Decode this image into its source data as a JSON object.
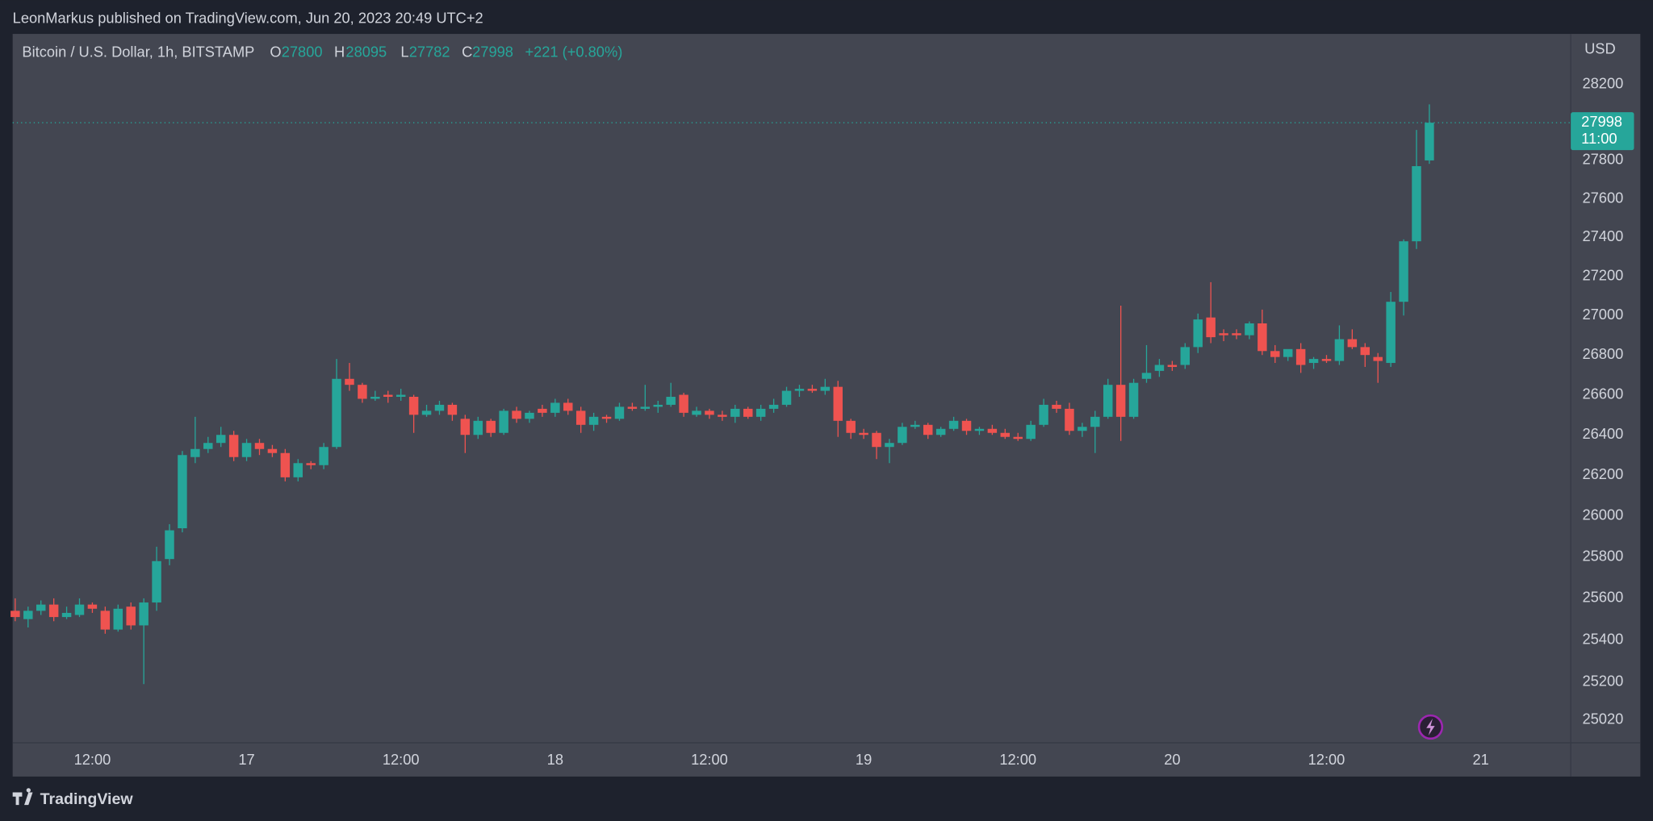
{
  "header": {
    "published": "LeonMarkus published on TradingView.com, Jun 20, 2023 20:49 UTC+2"
  },
  "footer": {
    "brand": "TradingView"
  },
  "chart_data": {
    "type": "candlestick",
    "title": "Bitcoin / U.S. Dollar, 1h, BITSTAMP",
    "legend_labels": {
      "open": "O",
      "high": "H",
      "low": "L",
      "close": "C"
    },
    "change": "+221 (+0.80%)",
    "currency": "USD",
    "countdown": "11:00",
    "up_color": "#26a69a",
    "down_color": "#ef5350",
    "log_scale": true,
    "grid": false,
    "xlim": [
      -0.2,
      121
    ],
    "ylim": [
      24913,
      28470
    ],
    "xticks": [
      {
        "value": 6,
        "label": "12:00"
      },
      {
        "value": 18,
        "label": "17"
      },
      {
        "value": 30,
        "label": "12:00"
      },
      {
        "value": 42,
        "label": "18"
      },
      {
        "value": 54,
        "label": "12:00"
      },
      {
        "value": 66,
        "label": "19"
      },
      {
        "value": 78,
        "label": "12:00"
      },
      {
        "value": 90,
        "label": "20"
      },
      {
        "value": 102,
        "label": "12:00"
      },
      {
        "value": 114,
        "label": "21"
      }
    ],
    "yticks": [
      28200,
      27800,
      27600,
      27400,
      27200,
      27000,
      26800,
      26600,
      26400,
      26200,
      26000,
      25800,
      25600,
      25400,
      25200,
      25020
    ],
    "open": [
      25540,
      25500,
      25540,
      25570,
      25510,
      25520,
      25570,
      25540,
      25450,
      25560,
      25470,
      25580,
      25790,
      25940,
      26290,
      26330,
      26360,
      26400,
      26290,
      26360,
      26330,
      26310,
      26190,
      26260,
      26250,
      26340,
      26680,
      26650,
      26580,
      26600,
      26590,
      26590,
      26500,
      26520,
      26550,
      26480,
      26400,
      26470,
      26410,
      26520,
      26480,
      26530,
      26510,
      26560,
      26520,
      26450,
      26490,
      26480,
      26540,
      26530,
      26540,
      26550,
      26600,
      26500,
      26520,
      26500,
      26490,
      26530,
      26490,
      26530,
      26550,
      26620,
      26630,
      26620,
      26640,
      26470,
      26410,
      26410,
      26340,
      26360,
      26440,
      26450,
      26400,
      26430,
      26470,
      26420,
      26430,
      26410,
      26390,
      26380,
      26450,
      26550,
      26530,
      26420,
      26440,
      26490,
      26650,
      26490,
      26680,
      26720,
      26750,
      26750,
      26840,
      26990,
      26910,
      26910,
      26900,
      26960,
      26820,
      26790,
      26830,
      26760,
      26780,
      26770,
      26880,
      26840,
      26790,
      26760,
      27070,
      27380,
      27800
    ],
    "high": [
      25600,
      25560,
      25590,
      25600,
      25560,
      25600,
      25580,
      25560,
      25570,
      25580,
      25600,
      25850,
      25960,
      26320,
      26490,
      26390,
      26440,
      26420,
      26380,
      26380,
      26350,
      26330,
      26280,
      26270,
      26360,
      26780,
      26760,
      26660,
      26620,
      26620,
      26630,
      26600,
      26550,
      26570,
      26560,
      26500,
      26490,
      26480,
      26530,
      26540,
      26520,
      26550,
      26580,
      26580,
      26540,
      26510,
      26500,
      26560,
      26560,
      26650,
      26570,
      26660,
      26610,
      26540,
      26530,
      26520,
      26550,
      26540,
      26550,
      26580,
      26640,
      26650,
      26650,
      26680,
      26670,
      26480,
      26430,
      26420,
      26380,
      26460,
      26470,
      26460,
      26440,
      26490,
      26480,
      26440,
      26450,
      26430,
      26410,
      26470,
      26580,
      26570,
      26560,
      26460,
      26520,
      26680,
      27050,
      26680,
      26850,
      26780,
      26770,
      26860,
      27010,
      27170,
      26930,
      26930,
      26970,
      27030,
      26850,
      26820,
      26860,
      26790,
      26800,
      26950,
      26930,
      26860,
      26810,
      27120,
      27390,
      27960,
      28095
    ],
    "low": [
      25490,
      25460,
      25520,
      25490,
      25500,
      25510,
      25530,
      25430,
      25440,
      25450,
      25190,
      25540,
      25760,
      25920,
      26260,
      26310,
      26340,
      26270,
      26270,
      26300,
      26290,
      26170,
      26170,
      26230,
      26230,
      26330,
      26620,
      26560,
      26570,
      26560,
      26570,
      26410,
      26490,
      26500,
      26470,
      26310,
      26380,
      26390,
      26400,
      26460,
      26460,
      26490,
      26490,
      26500,
      26410,
      26420,
      26460,
      26470,
      26520,
      26520,
      26510,
      26540,
      26490,
      26490,
      26480,
      26470,
      26460,
      26480,
      26470,
      26510,
      26540,
      26590,
      26610,
      26600,
      26390,
      26380,
      26380,
      26280,
      26260,
      26350,
      26430,
      26380,
      26390,
      26420,
      26400,
      26400,
      26400,
      26380,
      26370,
      26370,
      26440,
      26510,
      26400,
      26390,
      26310,
      26480,
      26370,
      26480,
      26660,
      26690,
      26720,
      26730,
      26810,
      26860,
      26870,
      26880,
      26880,
      26800,
      26760,
      26770,
      26710,
      26730,
      26760,
      26750,
      26830,
      26740,
      26660,
      26740,
      27000,
      27340,
      27782
    ],
    "close": [
      25510,
      25540,
      25570,
      25510,
      25530,
      25570,
      25550,
      25450,
      25550,
      25470,
      25580,
      25780,
      25930,
      26300,
      26330,
      26360,
      26400,
      26290,
      26360,
      26330,
      26310,
      26190,
      26260,
      26250,
      26340,
      26680,
      26650,
      26580,
      26590,
      26590,
      26600,
      26500,
      26520,
      26550,
      26500,
      26400,
      26470,
      26410,
      26520,
      26480,
      26510,
      26510,
      26560,
      26520,
      26450,
      26490,
      26480,
      26540,
      26530,
      26540,
      26550,
      26590,
      26510,
      26520,
      26500,
      26490,
      26530,
      26490,
      26530,
      26550,
      26620,
      26630,
      26620,
      26640,
      26470,
      26410,
      26400,
      26340,
      26360,
      26440,
      26450,
      26400,
      26430,
      26470,
      26420,
      26430,
      26410,
      26390,
      26380,
      26450,
      26550,
      26530,
      26420,
      26440,
      26490,
      26650,
      26490,
      26660,
      26710,
      26750,
      26740,
      26840,
      26980,
      26890,
      26900,
      26900,
      26960,
      26820,
      26790,
      26830,
      26750,
      26780,
      26770,
      26880,
      26840,
      26800,
      26770,
      27070,
      27380,
      27770,
      27998
    ]
  }
}
